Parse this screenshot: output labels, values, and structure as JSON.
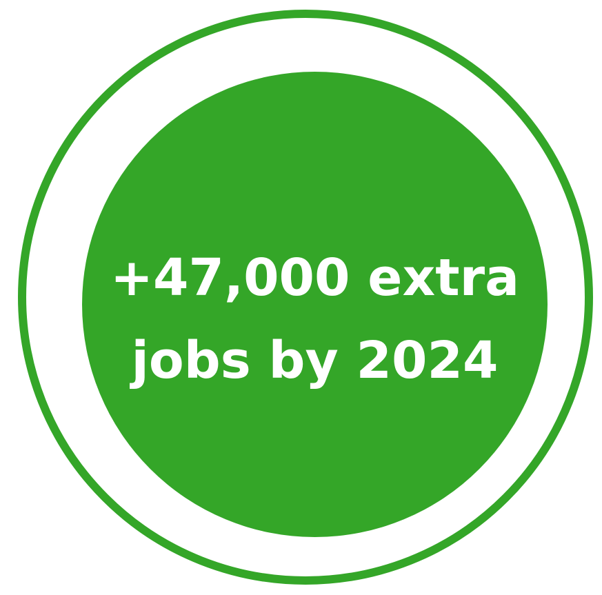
{
  "badge": {
    "line1": "+47,000 extra",
    "line2": "jobs by 2024",
    "colors": {
      "accent": "#34a628",
      "text": "#ffffff",
      "background": "#ffffff"
    }
  }
}
